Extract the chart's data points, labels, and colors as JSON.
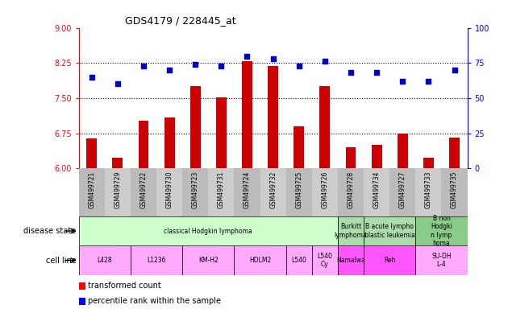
{
  "title": "GDS4179 / 228445_at",
  "samples": [
    "GSM499721",
    "GSM499729",
    "GSM499722",
    "GSM499730",
    "GSM499723",
    "GSM499731",
    "GSM499724",
    "GSM499732",
    "GSM499725",
    "GSM499726",
    "GSM499728",
    "GSM499734",
    "GSM499727",
    "GSM499733",
    "GSM499735"
  ],
  "transformed_count": [
    6.64,
    6.22,
    7.02,
    7.08,
    7.76,
    7.52,
    8.28,
    8.18,
    6.9,
    7.75,
    6.45,
    6.5,
    6.75,
    6.22,
    6.65
  ],
  "percentile_rank": [
    65,
    60,
    73,
    70,
    74,
    73,
    80,
    78,
    73,
    76,
    68,
    68,
    62,
    62,
    70
  ],
  "ylim_left": [
    6,
    9
  ],
  "ylim_right": [
    0,
    100
  ],
  "yticks_left": [
    6,
    6.75,
    7.5,
    8.25,
    9
  ],
  "yticks_right": [
    0,
    25,
    50,
    75,
    100
  ],
  "bar_color": "#cc0000",
  "dot_color": "#0000cc",
  "disease_state_groups": [
    {
      "label": "classical Hodgkin lymphoma",
      "start": 0,
      "end": 10,
      "color": "#ccffcc"
    },
    {
      "label": "Burkitt\nlymphoma",
      "start": 10,
      "end": 11,
      "color": "#aaddaa"
    },
    {
      "label": "B acute lympho\nblastic leukemia",
      "start": 11,
      "end": 13,
      "color": "#aaddaa"
    },
    {
      "label": "B non\nHodgki\nn lymp\nhoma",
      "start": 13,
      "end": 15,
      "color": "#88cc88"
    }
  ],
  "cell_line_groups": [
    {
      "label": "L428",
      "start": 0,
      "end": 2,
      "color": "#ffaaff"
    },
    {
      "label": "L1236",
      "start": 2,
      "end": 4,
      "color": "#ffaaff"
    },
    {
      "label": "KM-H2",
      "start": 4,
      "end": 6,
      "color": "#ffaaff"
    },
    {
      "label": "HDLM2",
      "start": 6,
      "end": 8,
      "color": "#ffaaff"
    },
    {
      "label": "L540",
      "start": 8,
      "end": 9,
      "color": "#ffaaff"
    },
    {
      "label": "L540\nCy",
      "start": 9,
      "end": 10,
      "color": "#ffaaff"
    },
    {
      "label": "Namalwa",
      "start": 10,
      "end": 11,
      "color": "#ff55ff"
    },
    {
      "label": "Reh",
      "start": 11,
      "end": 13,
      "color": "#ff55ff"
    },
    {
      "label": "SU-DH\nL-4",
      "start": 13,
      "end": 15,
      "color": "#ffaaff"
    }
  ],
  "legend_bar_label": "transformed count",
  "legend_dot_label": "percentile rank within the sample",
  "label_disease": "disease state",
  "label_cell": "cell line",
  "bar_width": 0.4,
  "dot_size": 14
}
